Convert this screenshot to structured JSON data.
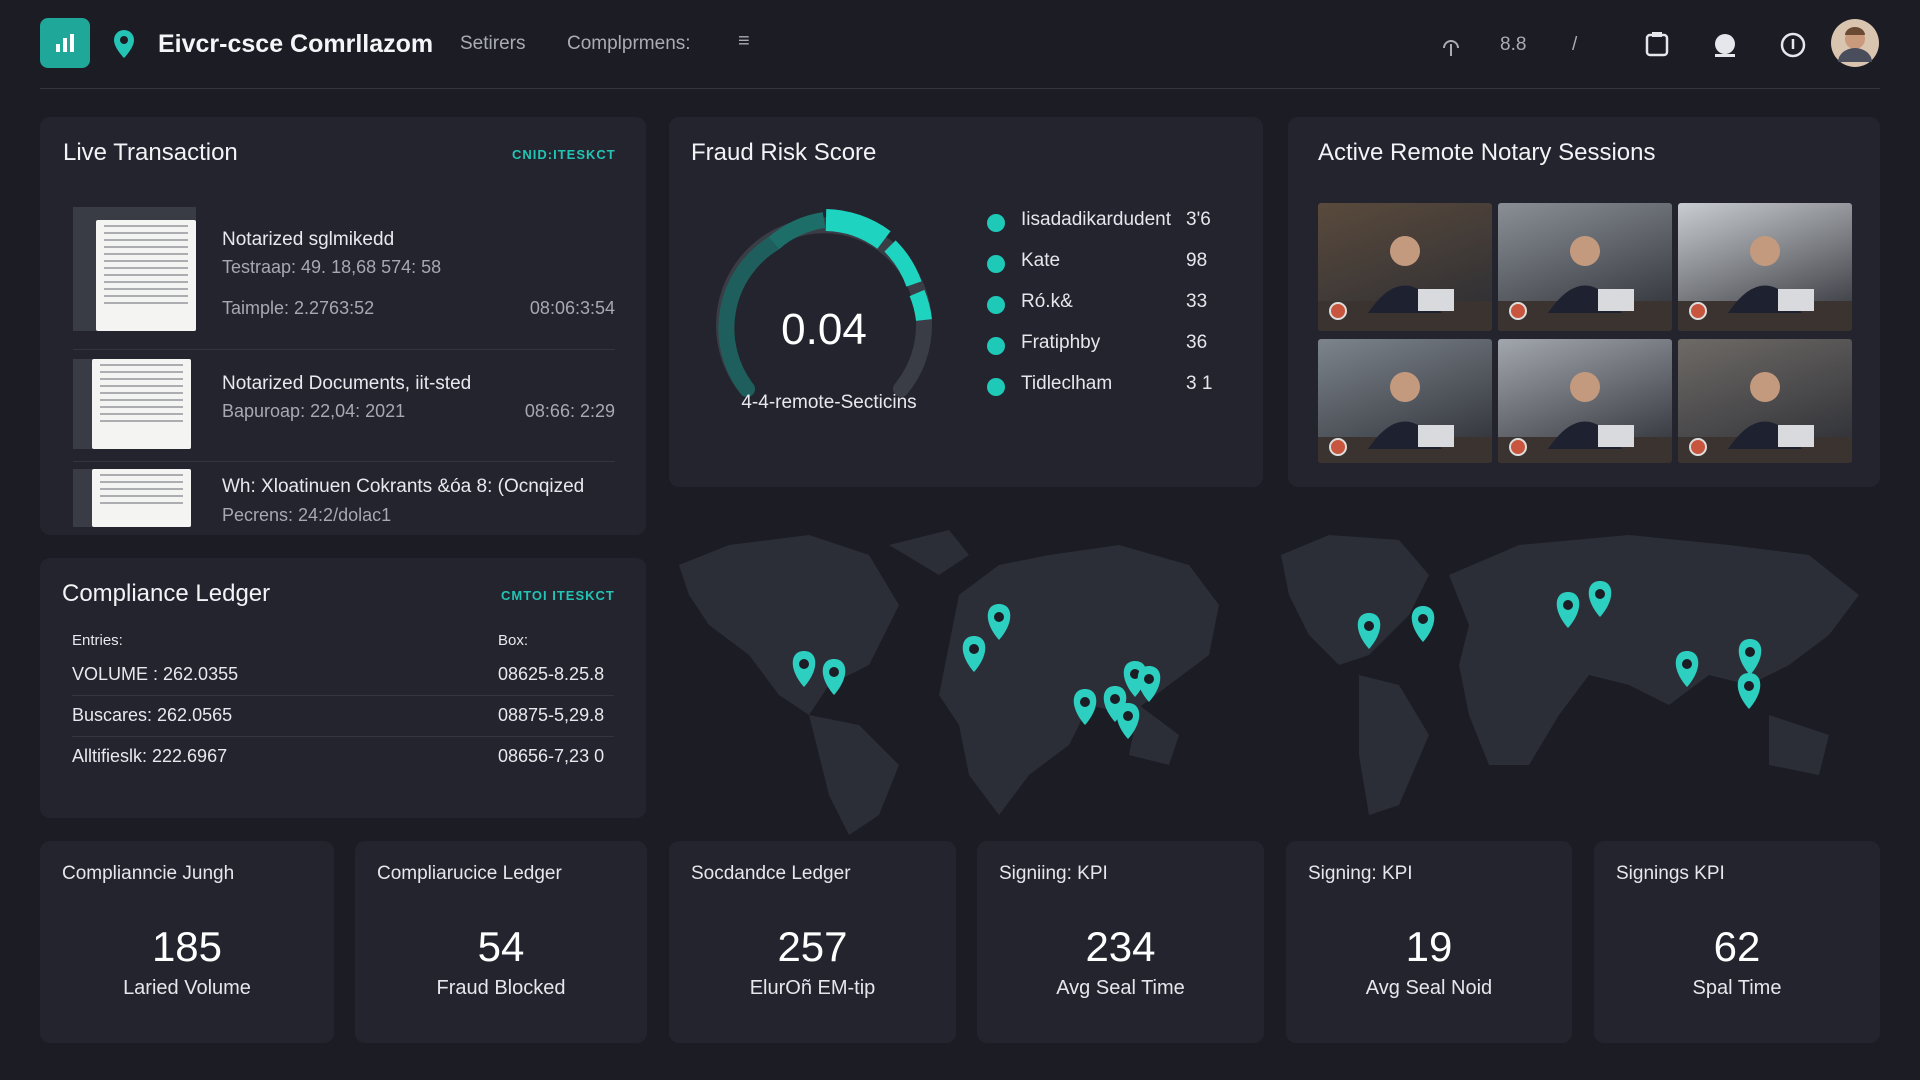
{
  "header": {
    "brand": "Eivcr-csce Comrllazom",
    "nav": [
      "Setirers",
      "Complprmens:"
    ],
    "indicator": "8.8",
    "divider": "/"
  },
  "live_transaction": {
    "title": "Live Transaction",
    "tag": "CNID:ITESKCT",
    "items": [
      {
        "title": "Notarized sglmikedd",
        "line1": "Testraap: 49. 18,68 574: 58",
        "line2": "Taimple: 2.2763:52",
        "time": "08:06:3:54"
      },
      {
        "title": "Notarized Documents, iit-sted",
        "line1": "Bapuroap: 22,04: 2021",
        "time": "08:66: 2:29"
      },
      {
        "title": "Wh: Xloatinuen Cokrants &óa 8: (Ocnqized",
        "line1": "Pecrens:  24:2/dolac1"
      }
    ]
  },
  "fraud_risk": {
    "title": "Fraud Risk Score",
    "score": "0.04",
    "caption": "4-4-remote-Secticins",
    "legend": [
      {
        "name": "Iisadadikardudent",
        "value": "3'6"
      },
      {
        "name": "Kate",
        "value": "98"
      },
      {
        "name": "Ró.k&",
        "value": "33"
      },
      {
        "name": "Fratiphby",
        "value": "36"
      },
      {
        "name": "Tidleclham",
        "value": "3 1"
      }
    ]
  },
  "sessions": {
    "title": "Active Remote Notary Sessions"
  },
  "ledger": {
    "title": "Compliance Ledger",
    "tag": "CMTOI ITESKCT",
    "headers": [
      "Entries:",
      "Box:"
    ],
    "rows": [
      [
        "VOLUME : 262.0355",
        "08625-8.25.8"
      ],
      [
        "Buscares: 262.0565",
        "08875-5,29.8"
      ],
      [
        "Alltifieslk: 222.6967",
        "08656-7,23 0"
      ]
    ]
  },
  "kpis": [
    {
      "label": "Complianncie Jungh",
      "value": 185,
      "sub": "Laried Volume"
    },
    {
      "label": "Compliarucice Ledger",
      "value": 54,
      "sub": "Fraud Blocked"
    },
    {
      "label": "Socdandce Ledger",
      "value": 257,
      "sub": "ElurOñ EM-tip"
    },
    {
      "label": "Signiing: KPI",
      "value": 234,
      "sub": "Avg Seal Time"
    },
    {
      "label": "Signing: KPI",
      "value": 19,
      "sub": "Avg Seal Noid"
    },
    {
      "label": "Signings KPI",
      "value": 62,
      "sub": "Spal Time"
    }
  ]
}
